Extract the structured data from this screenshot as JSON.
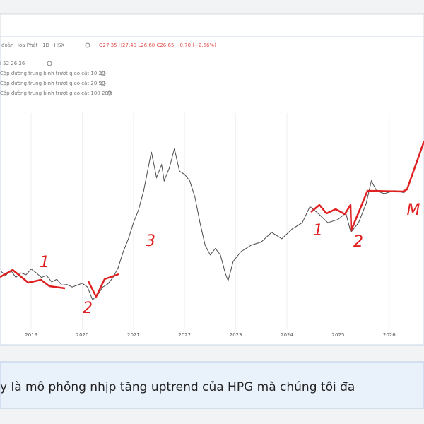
{
  "header": {
    "symbol": "đoàn Hòa Phát · 1D · HSX",
    "ohlc": "O27.35 H27.40 L26.60 C26.65 −0.70 (−2.56%)",
    "indicators": [
      "ì 52 26.26",
      "Cặp đường trung bình trượt giao cắt 10 20",
      "Cặp đường trung bình trượt giao cắt 20 50",
      "Cặp đường trung bình trượt giao cắt 100 200"
    ]
  },
  "chart_data": {
    "type": "line",
    "x": [
      2018.4,
      2018.5,
      2018.6,
      2018.7,
      2018.8,
      2018.9,
      2019.0,
      2019.1,
      2019.2,
      2019.3,
      2019.4,
      2019.5,
      2019.6,
      2019.7,
      2019.8,
      2019.9,
      2020.0,
      2020.1,
      2020.2,
      2020.3,
      2020.4,
      2020.5,
      2020.6,
      2020.7,
      2020.8,
      2020.9,
      2021.0,
      2021.1,
      2021.2,
      2021.3,
      2021.35,
      2021.45,
      2021.55,
      2021.6,
      2021.7,
      2021.8,
      2021.9,
      2022.0,
      2022.1,
      2022.2,
      2022.3,
      2022.4,
      2022.5,
      2022.6,
      2022.7,
      2022.8,
      2022.85,
      2022.95,
      2023.1,
      2023.3,
      2023.5,
      2023.7,
      2023.9,
      2024.1,
      2024.3,
      2024.45,
      2024.6,
      2024.8,
      2025.0,
      2025.15,
      2025.25,
      2025.4,
      2025.55,
      2025.65,
      2025.75,
      2025.9,
      2026.1,
      2026.3
    ],
    "series": [
      {
        "color": "#4a4a4a",
        "values": [
          14.5,
          13.8,
          14.6,
          13.5,
          14.2,
          13.9,
          14.8,
          14.2,
          13.5,
          13.8,
          12.8,
          13.2,
          12.3,
          12.4,
          12.0,
          12.3,
          12.6,
          12.0,
          10.0,
          10.8,
          12.0,
          12.5,
          13.5,
          15.0,
          17.5,
          19.5,
          22.0,
          24.0,
          27.0,
          31.0,
          33.0,
          29.0,
          31.0,
          28.5,
          30.5,
          33.5,
          30.0,
          29.5,
          28.5,
          26.0,
          22.0,
          18.5,
          17.0,
          18.0,
          17.0,
          14.0,
          13.0,
          16.0,
          17.5,
          18.5,
          19.0,
          20.5,
          19.5,
          21.0,
          22.0,
          24.5,
          23.5,
          22.0,
          22.5,
          23.5,
          20.5,
          22.0,
          25.0,
          28.5,
          27.0,
          26.5,
          27.0,
          26.65
        ]
      }
    ],
    "xlim": [
      2018.39,
      2026.68
    ],
    "xticks": [
      2019,
      2020,
      2021,
      2022,
      2023,
      2024,
      2025,
      2026
    ],
    "ylim": [
      5,
      50
    ],
    "grid": true,
    "annotations": [
      "1",
      "2",
      "3",
      "1",
      "2",
      "M"
    ]
  },
  "caption": "y là mô phỏng nhịp tăng uptrend của HPG mà chúng tôi đa"
}
